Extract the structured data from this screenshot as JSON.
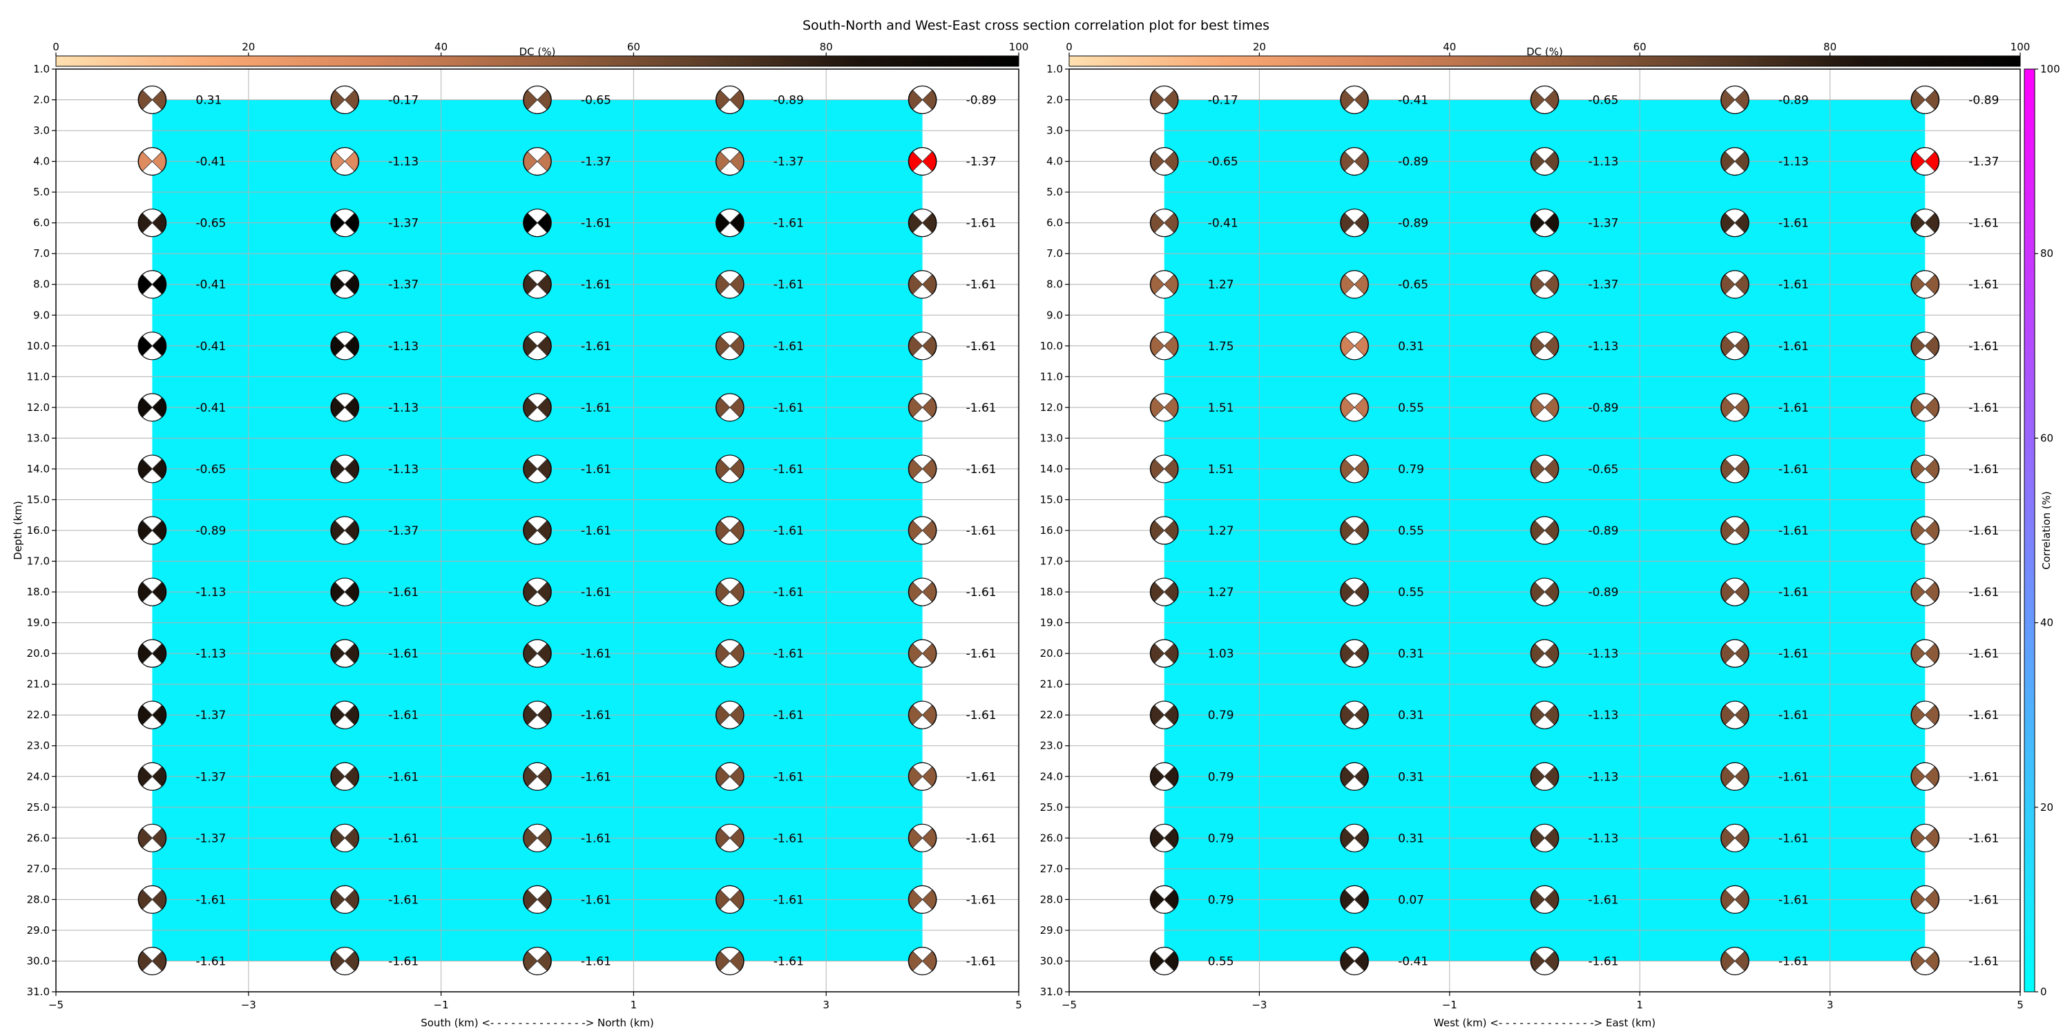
{
  "figure": {
    "title": "South-North and West-East cross section correlation plot for best times"
  },
  "chart_data": [
    {
      "type": "scatter",
      "panel": "left",
      "xlabel": "South (km) <- - - - - - - - - - - - - -> North (km)",
      "ylabel": "Depth (km)",
      "xlim": [
        -5,
        5
      ],
      "ylim": [
        31,
        1
      ],
      "yaxis_inverted": true,
      "grid": true,
      "xticks": [
        "−5",
        "−3",
        "−1",
        "1",
        "3",
        "5"
      ],
      "yticks": [
        "1.0",
        "2.0",
        "3.0",
        "4.0",
        "5.0",
        "6.0",
        "7.0",
        "8.0",
        "9.0",
        "10.0",
        "11.0",
        "12.0",
        "13.0",
        "14.0",
        "15.0",
        "16.0",
        "17.0",
        "18.0",
        "19.0",
        "20.0",
        "21.0",
        "22.0",
        "23.0",
        "24.0",
        "25.0",
        "26.0",
        "27.0",
        "28.0",
        "29.0",
        "30.0",
        "31.0"
      ],
      "dc_colorbar": {
        "label": "DC (%)",
        "ticks": [
          "0",
          "20",
          "40",
          "60",
          "80",
          "100"
        ],
        "range": [
          0,
          100
        ]
      },
      "correlation_fill": {
        "value_percent": 10,
        "x_range": [
          -4,
          4
        ],
        "depth_range": [
          2,
          30
        ]
      },
      "x": [
        -4,
        -2,
        0,
        2,
        4
      ],
      "depths": [
        2,
        4,
        6,
        8,
        10,
        12,
        14,
        16,
        18,
        20,
        22,
        24,
        26,
        28,
        30
      ],
      "rows": [
        [
          [
            0.31,
            60
          ],
          [
            -0.17,
            60
          ],
          [
            -0.65,
            60
          ],
          [
            -0.89,
            60
          ],
          [
            -0.89,
            60
          ]
        ],
        [
          [
            -0.41,
            30
          ],
          [
            -1.13,
            30
          ],
          [
            -1.37,
            40
          ],
          [
            -1.37,
            45
          ],
          [
            -1.37,
            "best"
          ]
        ],
        [
          [
            -0.65,
            80
          ],
          [
            -1.37,
            100
          ],
          [
            -1.61,
            100
          ],
          [
            -1.61,
            95
          ],
          [
            -1.61,
            75
          ]
        ],
        [
          [
            -0.41,
            100
          ],
          [
            -1.37,
            90
          ],
          [
            -1.61,
            75
          ],
          [
            -1.61,
            60
          ],
          [
            -1.61,
            60
          ]
        ],
        [
          [
            -0.41,
            100
          ],
          [
            -1.13,
            90
          ],
          [
            -1.61,
            75
          ],
          [
            -1.61,
            60
          ],
          [
            -1.61,
            60
          ]
        ],
        [
          [
            -0.41,
            90
          ],
          [
            -1.13,
            85
          ],
          [
            -1.61,
            75
          ],
          [
            -1.61,
            60
          ],
          [
            -1.61,
            55
          ]
        ],
        [
          [
            -0.65,
            85
          ],
          [
            -1.13,
            80
          ],
          [
            -1.61,
            75
          ],
          [
            -1.61,
            60
          ],
          [
            -1.61,
            55
          ]
        ],
        [
          [
            -0.89,
            85
          ],
          [
            -1.37,
            80
          ],
          [
            -1.61,
            75
          ],
          [
            -1.61,
            60
          ],
          [
            -1.61,
            55
          ]
        ],
        [
          [
            -1.13,
            85
          ],
          [
            -1.61,
            85
          ],
          [
            -1.61,
            75
          ],
          [
            -1.61,
            60
          ],
          [
            -1.61,
            55
          ]
        ],
        [
          [
            -1.13,
            85
          ],
          [
            -1.61,
            80
          ],
          [
            -1.61,
            75
          ],
          [
            -1.61,
            60
          ],
          [
            -1.61,
            55
          ]
        ],
        [
          [
            -1.37,
            85
          ],
          [
            -1.61,
            80
          ],
          [
            -1.61,
            75
          ],
          [
            -1.61,
            60
          ],
          [
            -1.61,
            55
          ]
        ],
        [
          [
            -1.37,
            80
          ],
          [
            -1.61,
            75
          ],
          [
            -1.61,
            70
          ],
          [
            -1.61,
            60
          ],
          [
            -1.61,
            55
          ]
        ],
        [
          [
            -1.37,
            70
          ],
          [
            -1.61,
            70
          ],
          [
            -1.61,
            65
          ],
          [
            -1.61,
            60
          ],
          [
            -1.61,
            55
          ]
        ],
        [
          [
            -1.61,
            70
          ],
          [
            -1.61,
            70
          ],
          [
            -1.61,
            70
          ],
          [
            -1.61,
            60
          ],
          [
            -1.61,
            55
          ]
        ],
        [
          [
            -1.61,
            70
          ],
          [
            -1.61,
            70
          ],
          [
            -1.61,
            65
          ],
          [
            -1.61,
            60
          ],
          [
            -1.61,
            55
          ]
        ]
      ]
    },
    {
      "type": "scatter",
      "panel": "right",
      "xlabel": "West (km) <- - - - - - - - - - - - - -> East (km)",
      "ylabel": "",
      "xlim": [
        -5,
        5
      ],
      "ylim": [
        31,
        1
      ],
      "yaxis_inverted": true,
      "grid": true,
      "xticks": [
        "−5",
        "−3",
        "−1",
        "1",
        "3",
        "5"
      ],
      "yticks": [
        "1.0",
        "2.0",
        "3.0",
        "4.0",
        "5.0",
        "6.0",
        "7.0",
        "8.0",
        "9.0",
        "10.0",
        "11.0",
        "12.0",
        "13.0",
        "14.0",
        "15.0",
        "16.0",
        "17.0",
        "18.0",
        "19.0",
        "20.0",
        "21.0",
        "22.0",
        "23.0",
        "24.0",
        "25.0",
        "26.0",
        "27.0",
        "28.0",
        "29.0",
        "30.0",
        "31.0"
      ],
      "dc_colorbar": {
        "label": "DC (%)",
        "ticks": [
          "0",
          "20",
          "40",
          "60",
          "80",
          "100"
        ],
        "range": [
          0,
          100
        ]
      },
      "correlation_colorbar": {
        "label": "Correlation (%)",
        "ticks": [
          "0",
          "20",
          "40",
          "60",
          "80",
          "100"
        ],
        "range": [
          0,
          100
        ]
      },
      "correlation_fill": {
        "value_percent": 10,
        "x_range": [
          -4,
          4
        ],
        "depth_range": [
          2,
          30
        ]
      },
      "x": [
        -4,
        -2,
        0,
        2,
        4
      ],
      "depths": [
        2,
        4,
        6,
        8,
        10,
        12,
        14,
        16,
        18,
        20,
        22,
        24,
        26,
        28,
        30
      ],
      "rows": [
        [
          [
            -0.17,
            60
          ],
          [
            -0.41,
            60
          ],
          [
            -0.65,
            60
          ],
          [
            -0.89,
            60
          ],
          [
            -0.89,
            60
          ]
        ],
        [
          [
            -0.65,
            60
          ],
          [
            -0.89,
            60
          ],
          [
            -1.13,
            65
          ],
          [
            -1.13,
            65
          ],
          [
            -1.37,
            "best"
          ]
        ],
        [
          [
            -0.41,
            60
          ],
          [
            -0.89,
            70
          ],
          [
            -1.37,
            85
          ],
          [
            -1.61,
            75
          ],
          [
            -1.61,
            75
          ]
        ],
        [
          [
            1.27,
            50
          ],
          [
            -0.65,
            45
          ],
          [
            -1.37,
            60
          ],
          [
            -1.61,
            60
          ],
          [
            -1.61,
            55
          ]
        ],
        [
          [
            1.75,
            50
          ],
          [
            0.31,
            35
          ],
          [
            -1.13,
            60
          ],
          [
            -1.61,
            60
          ],
          [
            -1.61,
            60
          ]
        ],
        [
          [
            1.51,
            50
          ],
          [
            0.55,
            40
          ],
          [
            -0.89,
            50
          ],
          [
            -1.61,
            55
          ],
          [
            -1.61,
            55
          ]
        ],
        [
          [
            1.51,
            60
          ],
          [
            0.79,
            55
          ],
          [
            -0.65,
            60
          ],
          [
            -1.61,
            60
          ],
          [
            -1.61,
            55
          ]
        ],
        [
          [
            1.27,
            65
          ],
          [
            0.55,
            65
          ],
          [
            -0.89,
            65
          ],
          [
            -1.61,
            60
          ],
          [
            -1.61,
            55
          ]
        ],
        [
          [
            1.27,
            70
          ],
          [
            0.55,
            70
          ],
          [
            -0.89,
            65
          ],
          [
            -1.61,
            60
          ],
          [
            -1.61,
            55
          ]
        ],
        [
          [
            1.03,
            70
          ],
          [
            0.31,
            70
          ],
          [
            -1.13,
            65
          ],
          [
            -1.61,
            60
          ],
          [
            -1.61,
            55
          ]
        ],
        [
          [
            0.79,
            75
          ],
          [
            0.31,
            70
          ],
          [
            -1.13,
            65
          ],
          [
            -1.61,
            60
          ],
          [
            -1.61,
            55
          ]
        ],
        [
          [
            0.79,
            80
          ],
          [
            0.31,
            75
          ],
          [
            -1.13,
            70
          ],
          [
            -1.61,
            60
          ],
          [
            -1.61,
            55
          ]
        ],
        [
          [
            0.79,
            80
          ],
          [
            0.31,
            75
          ],
          [
            -1.13,
            70
          ],
          [
            -1.61,
            60
          ],
          [
            -1.61,
            55
          ]
        ],
        [
          [
            0.79,
            85
          ],
          [
            0.07,
            80
          ],
          [
            -1.61,
            70
          ],
          [
            -1.61,
            60
          ],
          [
            -1.61,
            55
          ]
        ],
        [
          [
            0.55,
            85
          ],
          [
            -0.41,
            80
          ],
          [
            -1.61,
            70
          ],
          [
            -1.61,
            60
          ],
          [
            -1.61,
            55
          ]
        ]
      ]
    }
  ],
  "colors": {
    "fill_cyan": "#08f2fd",
    "best_mechanism": "#ff0000",
    "grid": "#b0b0b0",
    "dc_scale": [
      "#fee0b0",
      "#f8a873",
      "#d7845a",
      "#9f6440",
      "#60402a",
      "#1d130c",
      "#000000"
    ],
    "correlation_scale": [
      "#00ffff",
      "#ff00ff"
    ]
  }
}
